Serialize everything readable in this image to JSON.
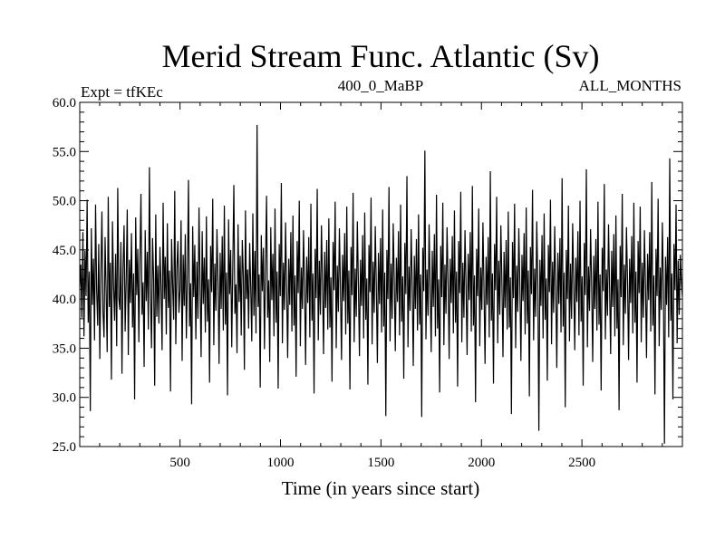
{
  "chart_data": {
    "type": "line",
    "title": "Merid Stream Func. Atlantic (Sv)",
    "left_label": "Expt = tfKEc",
    "center_label": "400_0_MaBP",
    "right_label": "ALL_MONTHS",
    "xlabel": "Time (in years since start)",
    "ylabel": "",
    "xlim": [
      1,
      3000
    ],
    "ylim": [
      25.0,
      60.0
    ],
    "x_ticks": [
      500,
      1000,
      1500,
      2000,
      2500
    ],
    "x_tick_labels": [
      "500",
      "1000",
      "1500",
      "2000",
      "2500"
    ],
    "y_ticks": [
      25,
      30,
      35,
      40,
      45,
      50,
      55,
      60
    ],
    "y_tick_labels": [
      "25.0",
      "30.0",
      "35.0",
      "40.0",
      "45.0",
      "50.0",
      "55.0",
      "60.0"
    ],
    "grid": false,
    "series": [
      {
        "color": "#000000",
        "x_start": 1,
        "x_end": 3000,
        "values": [
          41.2,
          43.5,
          38.1,
          46.8,
          36.2,
          44.9,
          40.3,
          50.1,
          37.6,
          42.8,
          28.6,
          47.2,
          39.4,
          44.1,
          35.8,
          49.6,
          41.0,
          37.3,
          45.6,
          33.9,
          42.4,
          48.9,
          38.7,
          36.1,
          46.3,
          40.8,
          34.6,
          50.4,
          39.2,
          43.7,
          31.8,
          47.9,
          41.5,
          37.8,
          44.6,
          35.2,
          51.3,
          40.1,
          38.9,
          45.8,
          32.4,
          43.2,
          47.5,
          36.7,
          41.9,
          49.1,
          34.3,
          44.0,
          39.6,
          46.7,
          37.1,
          42.6,
          29.8,
          48.3,
          40.4,
          45.1,
          35.6,
          43.9,
          50.7,
          38.4,
          41.7,
          33.1,
          47.0,
          39.8,
          44.8,
          36.9,
          53.4,
          40.6,
          35.0,
          46.2,
          42.1,
          31.2,
          48.6,
          38.2,
          43.4,
          37.5,
          45.3,
          41.1,
          34.8,
          49.8,
          40.0,
          44.3,
          36.4,
          47.7,
          39.1,
          42.9,
          30.6,
          46.1,
          41.4,
          37.9,
          51.0,
          35.4,
          43.1,
          45.9,
          38.6,
          40.9,
          48.0,
          33.7,
          44.5,
          39.3,
          46.6,
          36.0,
          42.2,
          52.1,
          37.2,
          41.6,
          29.3,
          47.4,
          40.2,
          45.5,
          35.9,
          43.8,
          38.0,
          49.3,
          41.3,
          34.1,
          46.9,
          39.5,
          44.2,
          36.6,
          48.4,
          37.7,
          42.0,
          31.5,
          45.4,
          40.7,
          50.2,
          35.3,
          43.6,
          38.8,
          47.1,
          41.8,
          33.4,
          44.7,
          39.0,
          46.4,
          36.8,
          49.5,
          37.4,
          42.7,
          30.2,
          48.1,
          40.5,
          45.0,
          35.1,
          43.3,
          51.6,
          38.5,
          41.5,
          34.5,
          47.6,
          39.7,
          44.4,
          36.3,
          46.0,
          42.3,
          32.8,
          49.0,
          40.0,
          43.0,
          37.0,
          45.7,
          41.2,
          35.7,
          48.7,
          38.3,
          44.9,
          36.5,
          57.7,
          39.2,
          42.5,
          31.0,
          46.5,
          40.8,
          45.2,
          34.9,
          43.5,
          50.5,
          38.1,
          41.9,
          33.6,
          47.3,
          39.9,
          44.6,
          36.2,
          49.2,
          37.6,
          42.8,
          30.9,
          45.6,
          40.3,
          51.8,
          35.5,
          43.7,
          38.9,
          47.8,
          41.0,
          34.0,
          44.1,
          39.4,
          46.8,
          36.7,
          48.5,
          37.3,
          42.4,
          32.1,
          45.9,
          40.6,
          50.0,
          35.2,
          43.2,
          39.0,
          47.0,
          41.4,
          33.3,
          44.3,
          39.6,
          46.3,
          36.1,
          49.7,
          37.8,
          42.6,
          30.4,
          45.1,
          40.1,
          51.2,
          35.8,
          43.9,
          38.4,
          47.5,
          41.7,
          34.4,
          44.8,
          39.1,
          46.0,
          36.9,
          48.2,
          37.1,
          42.2,
          31.6,
          45.8,
          40.9,
          49.9,
          35.0,
          43.4,
          38.7,
          47.2,
          41.1,
          33.8,
          44.5,
          39.8,
          46.7,
          36.4,
          49.4,
          37.5,
          42.9,
          30.8,
          45.3,
          40.4,
          50.8,
          35.6,
          43.1,
          38.2,
          47.9,
          41.6,
          34.2,
          44.0,
          39.3,
          46.5,
          36.0,
          48.8,
          37.9,
          42.1,
          31.3,
          45.5,
          40.7,
          50.3,
          35.4,
          43.8,
          38.6,
          47.4,
          41.3,
          33.5,
          44.7,
          39.5,
          46.2,
          36.6,
          49.1,
          37.2,
          42.7,
          28.1,
          45.0,
          40.0,
          51.4,
          35.7,
          43.6,
          38.0,
          47.7,
          41.8,
          34.7,
          44.2,
          39.7,
          46.9,
          36.3,
          49.6,
          37.7,
          42.3,
          31.9,
          45.7,
          40.5,
          52.5,
          35.1,
          43.3,
          38.8,
          47.1,
          41.5,
          33.2,
          44.4,
          39.0,
          46.1,
          36.8,
          48.6,
          37.4,
          42.5,
          28.0,
          45.2,
          40.8,
          55.1,
          35.9,
          43.0,
          38.3,
          47.6,
          41.2,
          34.6,
          44.9,
          39.2,
          46.6,
          36.2,
          50.6,
          37.0,
          42.0,
          30.5,
          45.4,
          40.2,
          49.8,
          35.3,
          43.5,
          38.5,
          47.3,
          41.9,
          33.9,
          44.1,
          39.6,
          46.4,
          36.5,
          49.0,
          37.6,
          42.8,
          31.1,
          45.9,
          40.6,
          50.9,
          35.6,
          43.7,
          38.1,
          47.0,
          41.4,
          34.3,
          44.6,
          39.9,
          46.8,
          36.7,
          51.5,
          37.3,
          42.4,
          29.5,
          45.1,
          40.3,
          49.2,
          35.2,
          43.2,
          38.9,
          47.8,
          41.0,
          33.4,
          44.3,
          39.4,
          46.3,
          36.1,
          53.0,
          37.8,
          42.6,
          31.4,
          45.6,
          40.9,
          50.4,
          35.5,
          43.9,
          38.4,
          47.5,
          41.7,
          34.1,
          44.8,
          39.1,
          46.0,
          36.9,
          48.9,
          37.1,
          42.2,
          28.3,
          45.8,
          40.1,
          49.7,
          35.0,
          43.4,
          38.7,
          47.2,
          41.3,
          33.7,
          44.5,
          39.8,
          46.7,
          36.4,
          49.3,
          37.5,
          42.9,
          30.1,
          45.3,
          40.5,
          51.1,
          35.8,
          43.1,
          38.2,
          47.9,
          41.6,
          26.6,
          44.0,
          39.3,
          46.5,
          36.0,
          48.7,
          37.9,
          42.1,
          31.7,
          45.5,
          40.7,
          50.1,
          35.4,
          43.8,
          38.6,
          47.4,
          41.1,
          33.0,
          44.7,
          39.5,
          46.2,
          36.6,
          52.3,
          37.2,
          42.7,
          29.0,
          45.0,
          40.0,
          49.5,
          35.7,
          43.6,
          38.0,
          47.7,
          41.8,
          34.8,
          44.2,
          39.7,
          46.9,
          36.3,
          50.0,
          37.7,
          42.3,
          31.2,
          45.7,
          40.4,
          53.2,
          35.1,
          43.3,
          38.8,
          47.1,
          41.5,
          33.6,
          44.4,
          39.0,
          46.1,
          36.8,
          49.9,
          37.4,
          42.5,
          30.7,
          45.2,
          40.8,
          51.7,
          35.9,
          43.0,
          38.3,
          47.6,
          41.2,
          34.4,
          44.9,
          39.2,
          46.6,
          36.2,
          48.5,
          37.0,
          42.0,
          28.7,
          45.4,
          40.2,
          50.7,
          35.3,
          43.5,
          38.5,
          47.3,
          41.9,
          33.8,
          44.1,
          39.6,
          46.4,
          36.5,
          49.8,
          37.6,
          42.8,
          31.5,
          45.9,
          40.6,
          49.4,
          35.6,
          43.7,
          38.1,
          47.0,
          41.4,
          34.0,
          44.6,
          39.9,
          46.8,
          36.7,
          51.9,
          37.3,
          42.4,
          30.3,
          45.1,
          40.3,
          50.2,
          35.2,
          43.2,
          38.9,
          47.8,
          41.0,
          25.3,
          44.3,
          39.4,
          46.3,
          36.1,
          54.3,
          37.8,
          42.6,
          29.8,
          45.6,
          40.9,
          49.6,
          35.5,
          43.9,
          38.4,
          44.5,
          41.7,
          40.2
        ]
      }
    ]
  }
}
